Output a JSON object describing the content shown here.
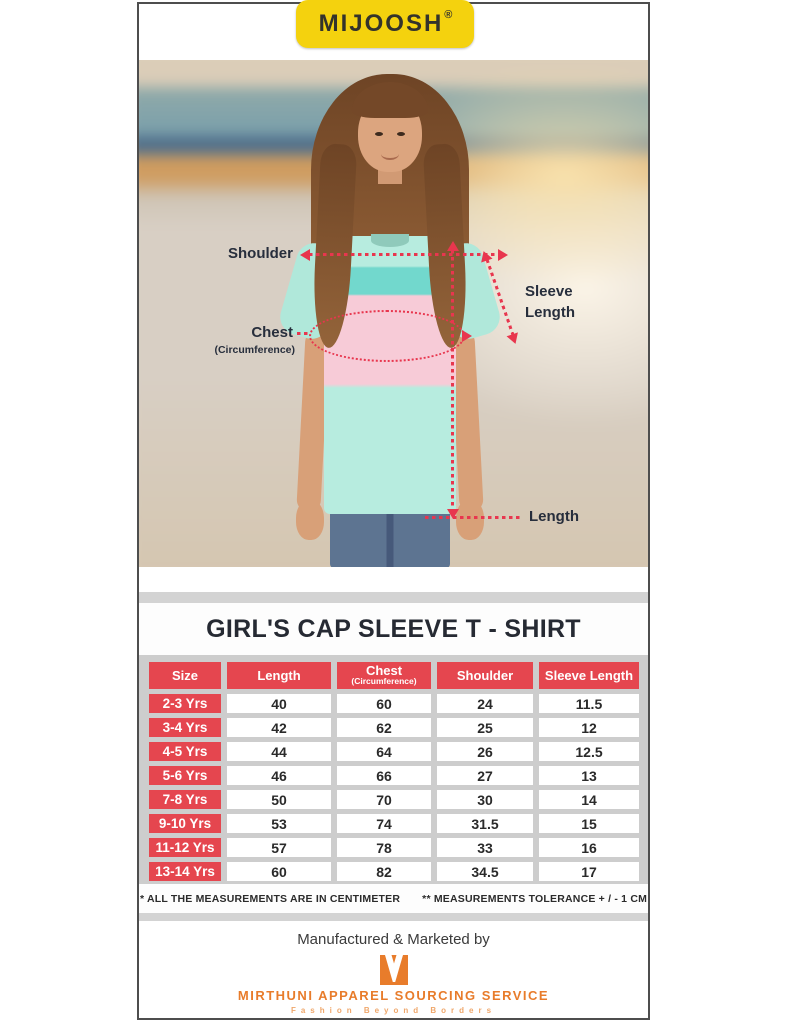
{
  "brand": {
    "name": "MIJOOSH",
    "registered_mark": "®"
  },
  "size_guide_labels": {
    "shoulder": "Shoulder",
    "sleeve_line1": "Sleeve",
    "sleeve_line2": "Length",
    "chest": "Chest",
    "chest_sub": "(Circumference)",
    "length": "Length"
  },
  "product_title": "GIRL'S CAP SLEEVE T - SHIRT",
  "size_table": {
    "columns": [
      {
        "label": "Size",
        "sub": ""
      },
      {
        "label": "Length",
        "sub": ""
      },
      {
        "label": "Chest",
        "sub": "(Circumference)"
      },
      {
        "label": "Shoulder",
        "sub": ""
      },
      {
        "label": "Sleeve Length",
        "sub": ""
      }
    ],
    "rows": [
      [
        "2-3 Yrs",
        "40",
        "60",
        "24",
        "11.5"
      ],
      [
        "3-4 Yrs",
        "42",
        "62",
        "25",
        "12"
      ],
      [
        "4-5 Yrs",
        "44",
        "64",
        "26",
        "12.5"
      ],
      [
        "5-6 Yrs",
        "46",
        "66",
        "27",
        "13"
      ],
      [
        "7-8 Yrs",
        "50",
        "70",
        "30",
        "14"
      ],
      [
        "9-10 Yrs",
        "53",
        "74",
        "31.5",
        "15"
      ],
      [
        "11-12 Yrs",
        "57",
        "78",
        "33",
        "16"
      ],
      [
        "13-14 Yrs",
        "60",
        "82",
        "34.5",
        "17"
      ]
    ],
    "notes": {
      "note1": "* ALL THE MEASUREMENTS ARE IN CENTIMETER",
      "note2": "** MEASUREMENTS TOLERANCE + / - 1 CM"
    }
  },
  "footer": {
    "manufactured_by": "Manufactured & Marketed by",
    "company_name": "MIRTHUNI APPAREL SOURCING SERVICE",
    "tagline": "Fashion Beyond Borders"
  },
  "colors": {
    "accent_red": "#e5464f",
    "annotation_red": "#e8364e",
    "brand_yellow": "#f4d20e",
    "brand_orange": "#e87c2b",
    "panel_gray": "#cdcdcd"
  }
}
